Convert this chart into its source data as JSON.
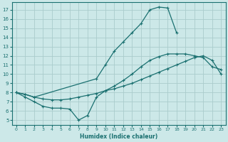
{
  "xlabel": "Humidex (Indice chaleur)",
  "bg_color": "#cce8e8",
  "line_color": "#1a7070",
  "grid_color": "#aacccc",
  "xlim": [
    -0.5,
    23.5
  ],
  "ylim": [
    4.5,
    17.8
  ],
  "xticks": [
    0,
    1,
    2,
    3,
    4,
    5,
    6,
    7,
    8,
    9,
    10,
    11,
    12,
    13,
    14,
    15,
    16,
    17,
    18,
    19,
    20,
    21,
    22,
    23
  ],
  "yticks": [
    5,
    6,
    7,
    8,
    9,
    10,
    11,
    12,
    13,
    14,
    15,
    16,
    17
  ],
  "curve1_x": [
    0,
    1,
    2,
    9,
    10,
    11,
    12,
    13,
    14,
    15,
    16,
    17,
    18
  ],
  "curve1_y": [
    8.0,
    7.8,
    7.5,
    9.5,
    11.0,
    12.5,
    13.5,
    14.5,
    15.5,
    17.0,
    17.3,
    17.2,
    14.5
  ],
  "curve2_x": [
    0,
    1,
    2,
    3,
    4,
    5,
    6,
    7,
    8,
    9,
    10,
    11,
    12,
    13,
    14,
    15,
    16,
    17,
    18,
    19,
    20,
    21,
    22,
    23
  ],
  "curve2_y": [
    8.0,
    7.8,
    7.5,
    7.3,
    7.2,
    7.2,
    7.3,
    7.5,
    7.7,
    7.9,
    8.2,
    8.4,
    8.7,
    9.0,
    9.4,
    9.8,
    10.2,
    10.6,
    11.0,
    11.4,
    11.8,
    12.0,
    11.5,
    10.0
  ],
  "curve3_x": [
    0,
    1,
    2,
    3,
    4,
    5,
    6,
    7,
    8,
    9,
    10,
    11,
    12,
    13,
    14,
    15,
    16,
    17,
    18,
    19,
    20,
    21,
    22,
    23
  ],
  "curve3_y": [
    8.0,
    7.5,
    7.0,
    6.5,
    6.3,
    6.3,
    6.2,
    5.0,
    5.5,
    7.5,
    8.2,
    8.7,
    9.3,
    10.0,
    10.8,
    11.5,
    11.9,
    12.2,
    12.2,
    12.2,
    12.0,
    11.8,
    10.8,
    10.5
  ]
}
